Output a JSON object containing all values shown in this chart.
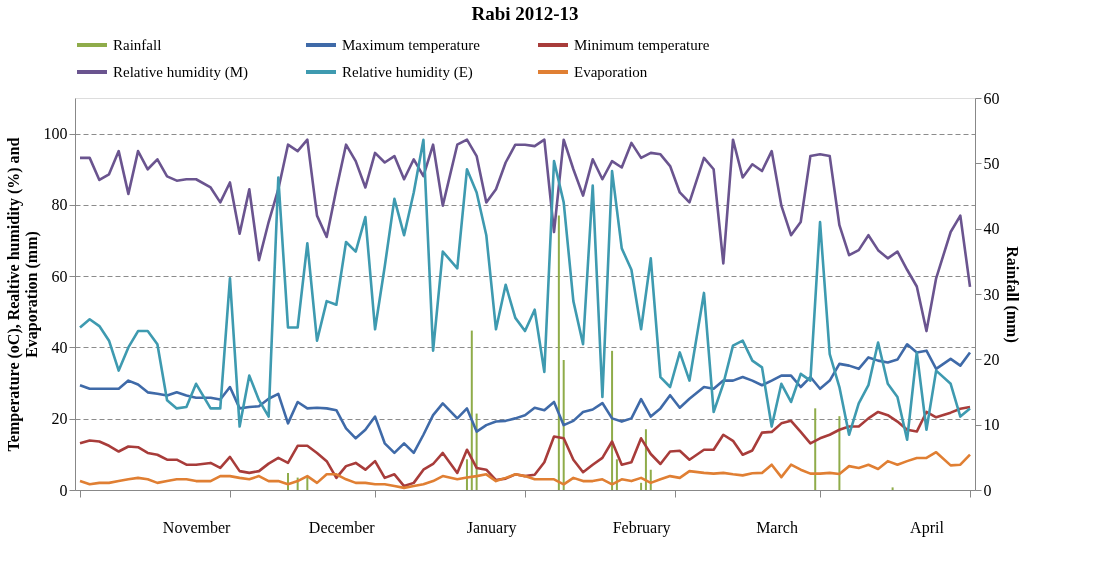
{
  "chart_data": {
    "type": "line",
    "title": "Rabi 2012-13",
    "ylabel": "Temperature (oC), Realtive humidity (%) and\nEvaporation (mm)",
    "y2label": "Rainfall (mm)",
    "x": [
      "2012-10-08",
      "2012-10-10",
      "2012-10-12",
      "2012-10-14",
      "2012-10-16",
      "2012-10-18",
      "2012-10-20",
      "2012-10-22",
      "2012-10-24",
      "2012-10-26",
      "2012-10-28",
      "2012-10-30",
      "2012-11-01",
      "2012-11-04",
      "2012-11-06",
      "2012-11-08",
      "2012-11-10",
      "2012-11-12",
      "2012-11-14",
      "2012-11-16",
      "2012-11-18",
      "2012-11-20",
      "2012-11-22",
      "2012-11-24",
      "2012-11-26",
      "2012-11-28",
      "2012-11-30",
      "2012-12-02",
      "2012-12-04",
      "2012-12-06",
      "2012-12-08",
      "2012-12-10",
      "2012-12-12",
      "2012-12-14",
      "2012-12-16",
      "2012-12-18",
      "2012-12-20",
      "2012-12-22",
      "2012-12-25",
      "2012-12-27",
      "2012-12-29",
      "2012-12-31",
      "2013-01-02",
      "2013-01-04",
      "2013-01-06",
      "2013-01-08",
      "2013-01-10",
      "2013-01-12",
      "2013-01-14",
      "2013-01-16",
      "2013-01-18",
      "2013-01-20",
      "2013-01-22",
      "2013-01-24",
      "2013-01-26",
      "2013-01-28",
      "2013-01-30",
      "2013-02-01",
      "2013-02-03",
      "2013-02-05",
      "2013-02-07",
      "2013-02-09",
      "2013-02-11",
      "2013-02-14",
      "2013-02-16",
      "2013-02-18",
      "2013-02-20",
      "2013-02-22",
      "2013-02-24",
      "2013-02-26",
      "2013-02-28",
      "2013-03-02",
      "2013-03-04",
      "2013-03-06",
      "2013-03-08",
      "2013-03-10",
      "2013-03-12",
      "2013-03-14",
      "2013-03-16",
      "2013-03-18",
      "2013-03-20",
      "2013-03-22",
      "2013-03-24",
      "2013-03-26",
      "2013-03-28",
      "2013-03-30",
      "2013-04-01",
      "2013-04-03",
      "2013-04-06",
      "2013-04-08",
      "2013-04-10"
    ],
    "xlim": [
      "2012-10-08",
      "2013-04-10"
    ],
    "xticks": [
      {
        "value": "2012-10-08",
        "label": null
      },
      {
        "value": "2012-11-08",
        "label": null
      },
      {
        "value": "2012-12-08",
        "label": null
      },
      {
        "value": "2013-01-08",
        "label": null
      },
      {
        "value": "2013-02-08",
        "label": null
      },
      {
        "value": "2013-03-10",
        "label": null
      },
      {
        "value": "2013-04-10",
        "label": null
      },
      {
        "value": "2012-11-01",
        "label": "November"
      },
      {
        "value": "2012-12-01",
        "label": "December"
      },
      {
        "value": "2013-01-01",
        "label": "January"
      },
      {
        "value": "2013-02-01",
        "label": "February"
      },
      {
        "value": "2013-03-01",
        "label": "March"
      },
      {
        "value": "2013-04-01",
        "label": "April"
      }
    ],
    "ylim": [
      0,
      110
    ],
    "yticks": [
      0,
      20,
      40,
      60,
      80,
      100
    ],
    "y2lim": [
      0,
      60
    ],
    "y2ticks": [
      0,
      10,
      20,
      30,
      40,
      50,
      60
    ],
    "grid": "y",
    "legend": "top",
    "marker": "none",
    "line_style": "solid",
    "series": [
      {
        "name": "Rainfall",
        "type": "bar",
        "axis": "y2",
        "color": "#8fac4a",
        "x": [
          "2012-11-20",
          "2012-11-22",
          "2012-11-24",
          "2012-12-27",
          "2012-12-28",
          "2012-12-29",
          "2013-01-15",
          "2013-01-16",
          "2013-01-26",
          "2013-01-27",
          "2013-02-01",
          "2013-02-02",
          "2013-02-03",
          "2013-03-09",
          "2013-03-14",
          "2013-03-25"
        ],
        "values": [
          2.6,
          1.9,
          2.1,
          4.7,
          24.4,
          11.7,
          42,
          19.9,
          21.3,
          4.7,
          1.1,
          9.3,
          3.1,
          12.5,
          11.3,
          0.4
        ]
      },
      {
        "name": "Maximum temperature",
        "color": "#3f6aa8",
        "values": [
          29.4,
          28.4,
          28.4,
          28.4,
          28.4,
          30.7,
          29.6,
          27.4,
          27,
          26.5,
          27.4,
          26.5,
          25.9,
          25.9,
          25.4,
          28.9,
          22.9,
          23.3,
          23.5,
          25.6,
          27,
          18.7,
          24.7,
          22.9,
          23.1,
          22.9,
          22.4,
          17.3,
          14.5,
          16.9,
          20.6,
          13.1,
          10.4,
          13.1,
          10.4,
          15.5,
          21,
          24.3,
          20.1,
          22.9,
          16.4,
          18.2,
          19.2,
          19.4,
          20.1,
          21,
          23.1,
          22.4,
          24.7,
          18.2,
          19.4,
          21.9,
          22.6,
          24.4,
          20.1,
          19.2,
          20.1,
          25.5,
          20.6,
          22.9,
          26.6,
          23.1,
          25.6,
          28.9,
          28.4,
          30.7,
          30.7,
          31.7,
          30.7,
          29.4,
          30.7,
          32.1,
          32.1,
          28.9,
          31.7,
          28.4,
          30.7,
          35.4,
          34.9,
          34,
          37.2,
          36.3,
          35.8,
          36.6,
          40.9,
          38.6,
          39.1,
          34,
          36.8,
          34.9,
          38.6
        ]
      },
      {
        "name": "Minimum temperature",
        "color": "#a83c3a",
        "values": [
          13.1,
          13.9,
          13.6,
          12.4,
          10.8,
          12.2,
          12,
          10.4,
          9.9,
          8.5,
          8.5,
          7.1,
          7.1,
          7.6,
          6.2,
          9.3,
          5.3,
          4.8,
          5.3,
          7.4,
          9,
          7.6,
          12.4,
          12.4,
          10.4,
          8.1,
          3.4,
          6.7,
          7.6,
          5.7,
          8.1,
          3.4,
          4.4,
          1.1,
          2,
          5.7,
          7.3,
          10.4,
          4.8,
          11.3,
          6.2,
          5.7,
          2.8,
          3.2,
          4.4,
          3.9,
          4.3,
          7.8,
          15,
          14.5,
          8.5,
          5,
          7.1,
          9,
          13.6,
          7.1,
          7.8,
          14.5,
          10.1,
          7.3,
          10.8,
          11,
          8.5,
          11.3,
          11.3,
          15.5,
          13.8,
          9.9,
          11.1,
          16.1,
          16.3,
          18.7,
          19.4,
          16.3,
          13.1,
          14.5,
          15.5,
          16.9,
          17.8,
          17.8,
          20.1,
          21.9,
          21,
          19.2,
          16.9,
          16.4,
          21.9,
          20.4,
          21.7,
          22.8,
          23.3
        ]
      },
      {
        "name": "Relative humidity (M)",
        "color": "#6a548f",
        "values": [
          93.2,
          93.2,
          87,
          88.6,
          95.1,
          83.1,
          95.1,
          90,
          92.8,
          88,
          86.8,
          87.2,
          87.2,
          84.9,
          80.7,
          86.3,
          71.9,
          84.4,
          64.5,
          75.2,
          84.4,
          96.9,
          95.1,
          98.3,
          77,
          71,
          84.4,
          96.9,
          92.3,
          84.9,
          94.6,
          91.9,
          93.7,
          87.2,
          92.8,
          88.1,
          96.9,
          79.8,
          96.9,
          98.3,
          93.7,
          80.7,
          84.4,
          91.9,
          96.9,
          96.9,
          96.5,
          98.3,
          72.4,
          98.3,
          90,
          82.6,
          92.8,
          87.2,
          92.3,
          90.5,
          97.4,
          93.2,
          94.6,
          94.2,
          90.9,
          83.5,
          80.7,
          93.2,
          90,
          63.6,
          98.3,
          87.7,
          91.4,
          89.5,
          95.1,
          79.8,
          71.5,
          75.2,
          93.7,
          94.2,
          93.7,
          74.3,
          65.9,
          67.3,
          71.5,
          67.3,
          65,
          66.9,
          61.8,
          57.1,
          44.6,
          59.4,
          72.4,
          77,
          57
        ]
      },
      {
        "name": "Relative humidity (E)",
        "color": "#3e9ab0",
        "values": [
          45.6,
          47.9,
          46,
          41.9,
          33.5,
          40,
          44.6,
          44.6,
          40.9,
          25.2,
          22.9,
          23.3,
          29.8,
          22.9,
          22.9,
          59.4,
          17.8,
          32.1,
          25.2,
          20.6,
          87.7,
          45.6,
          45.6,
          69.2,
          41.9,
          53,
          52,
          69.6,
          66.9,
          76.6,
          45.1,
          62.7,
          81.7,
          71.5,
          83.5,
          98.3,
          39.1,
          66.9,
          62.2,
          90,
          83.5,
          71.5,
          45.1,
          57.6,
          48.3,
          44.6,
          50.6,
          33.1,
          92.3,
          80.7,
          53,
          40.9,
          85.4,
          26.1,
          89.5,
          67.8,
          61.8,
          45.1,
          65,
          31.7,
          28.9,
          38.6,
          30.7,
          55.3,
          21.9,
          29.8,
          40.5,
          41.9,
          36.3,
          34.4,
          17.8,
          29.8,
          24.7,
          32.6,
          30.7,
          75.2,
          38.1,
          28.9,
          15.5,
          24.3,
          29.4,
          41.4,
          29.8,
          26.1,
          14.1,
          38.6,
          16.9,
          33.5,
          29.8,
          20.6,
          22.9
        ]
      },
      {
        "name": "Evaporation",
        "color": "#e07f33",
        "values": [
          2.5,
          1.6,
          2,
          2,
          2.5,
          3,
          3.4,
          3,
          2,
          2.5,
          3,
          3,
          2.5,
          2.5,
          3.9,
          3.9,
          3.4,
          3,
          3.9,
          2.5,
          2.5,
          1.6,
          2.5,
          3.9,
          2,
          4.4,
          4.4,
          3,
          2,
          2,
          1.6,
          1.6,
          1.1,
          0.6,
          1.1,
          1.6,
          2.5,
          3.9,
          3,
          3.5,
          3.9,
          4.4,
          2.5,
          3.4,
          4.4,
          3.9,
          3,
          3,
          3,
          1.6,
          3.4,
          2.5,
          2.5,
          3,
          1.6,
          3,
          2.5,
          3.4,
          2,
          3,
          3.9,
          3.4,
          5.3,
          4.8,
          4.6,
          4.8,
          4.4,
          4.1,
          4.7,
          4.8,
          7.1,
          3.6,
          7.1,
          5.7,
          4.6,
          4.6,
          4.8,
          4.5,
          6.7,
          6.2,
          7.1,
          5.9,
          8.1,
          7.1,
          8.1,
          9,
          9,
          10.6,
          6.9,
          7.1,
          9.9
        ]
      }
    ]
  }
}
